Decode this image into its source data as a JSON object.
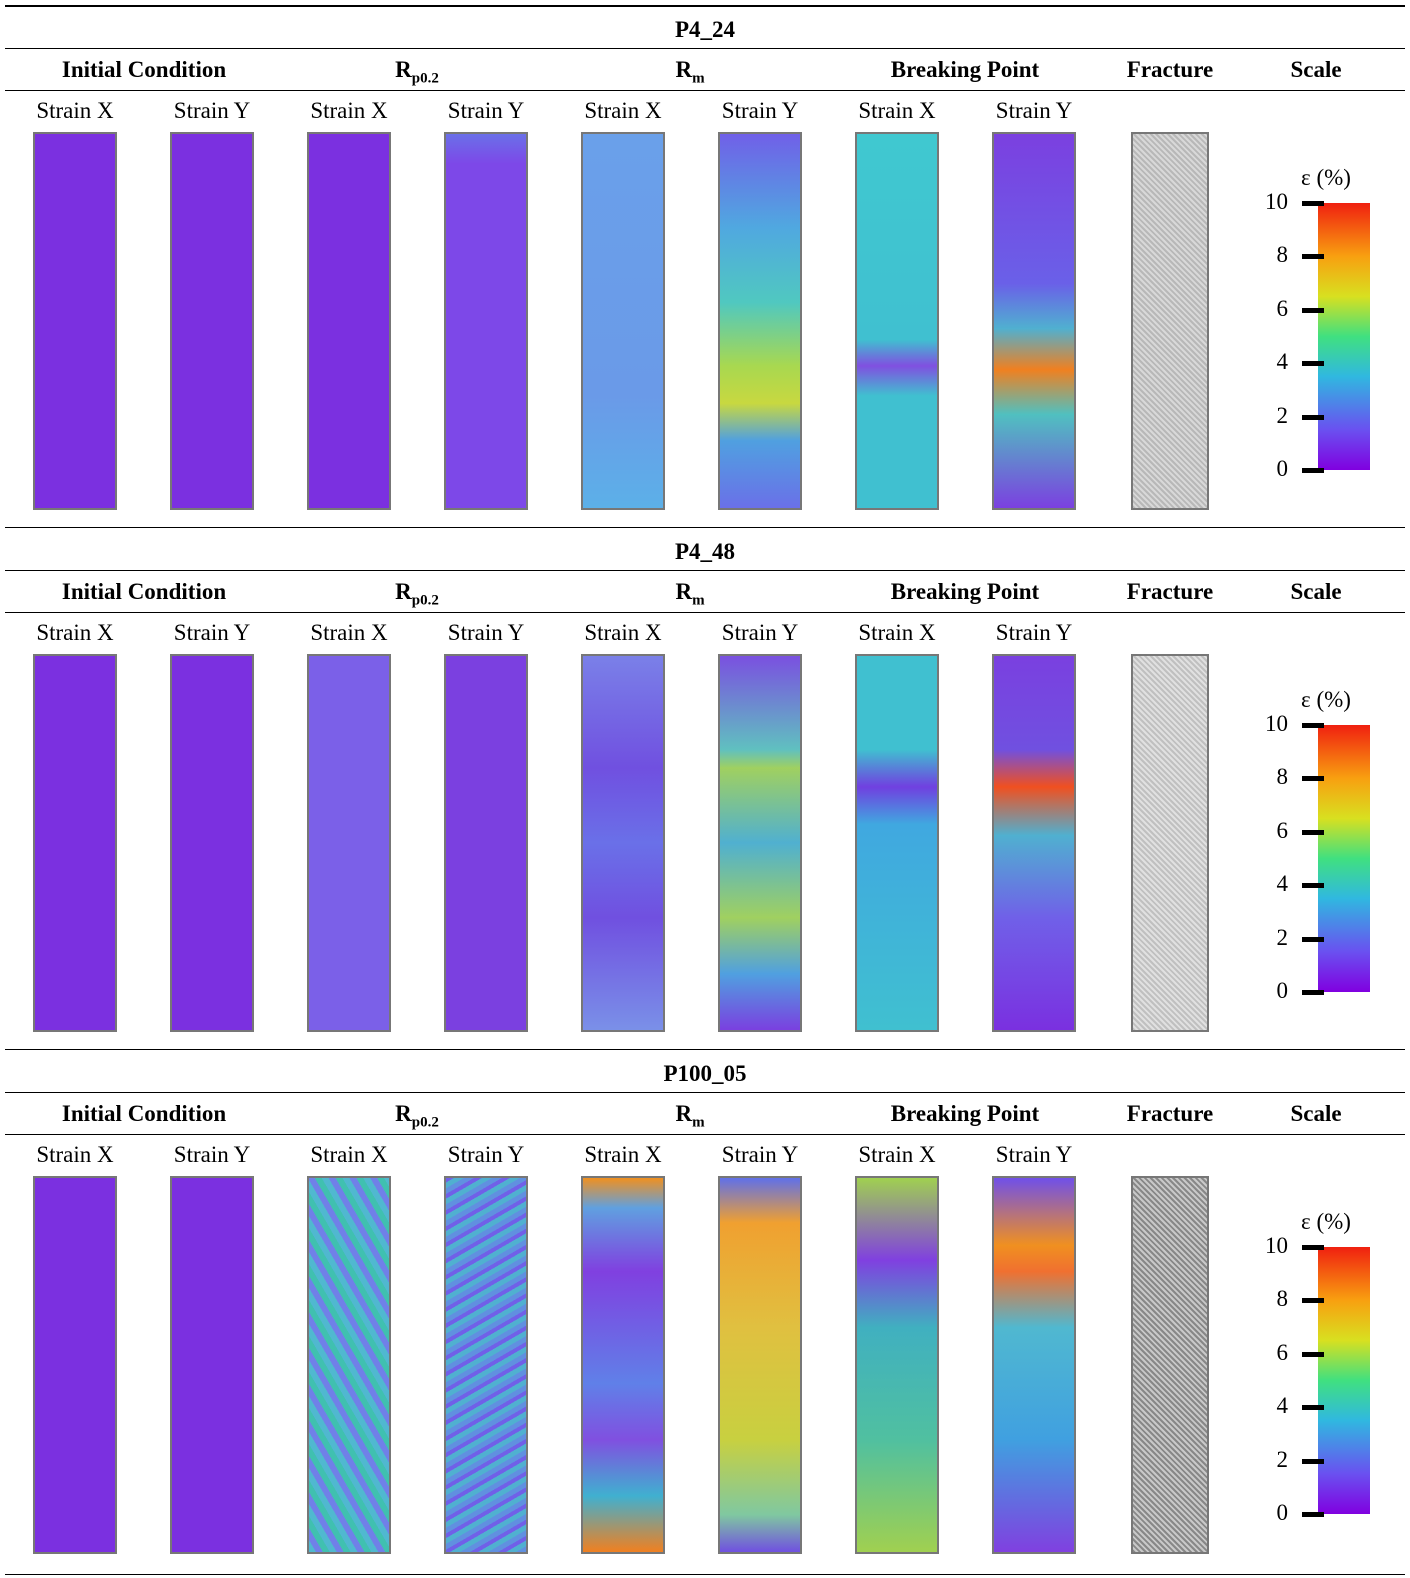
{
  "sections": [
    {
      "title": "P4_24",
      "headers": [
        {
          "text": "Initial Condition"
        },
        {
          "text": "R",
          "sub": "p0.2"
        },
        {
          "text": "R",
          "sub": "m"
        },
        {
          "text": "Breaking Point"
        },
        {
          "text": "Fracture"
        },
        {
          "text": "Scale"
        }
      ],
      "strain_labels": [
        "Strain X",
        "Strain Y",
        "Strain X",
        "Strain Y",
        "Strain X",
        "Strain Y",
        "Strain X",
        "Strain Y"
      ],
      "scale": {
        "label": "ε (%)",
        "ticks": [
          10,
          8,
          6,
          4,
          2,
          0
        ]
      }
    },
    {
      "title": "P4_48",
      "headers": [
        {
          "text": "Initial Condition"
        },
        {
          "text": "R",
          "sub": "p0.2"
        },
        {
          "text": "R",
          "sub": "m"
        },
        {
          "text": "Breaking Point"
        },
        {
          "text": "Fracture"
        },
        {
          "text": "Scale"
        }
      ],
      "strain_labels": [
        "Strain X",
        "Strain Y",
        "Strain X",
        "Strain Y",
        "Strain X",
        "Strain Y",
        "Strain X",
        "Strain Y"
      ],
      "scale": {
        "label": "ε (%)",
        "ticks": [
          10,
          8,
          6,
          4,
          2,
          0
        ]
      }
    },
    {
      "title": "P100_05",
      "headers": [
        {
          "text": "Initial Condition"
        },
        {
          "text": "R",
          "sub": "p0.2"
        },
        {
          "text": "R",
          "sub": "m"
        },
        {
          "text": "Breaking Point"
        },
        {
          "text": "Fracture"
        },
        {
          "text": "Scale"
        }
      ],
      "strain_labels": [
        "Strain X",
        "Strain Y",
        "Strain X",
        "Strain Y",
        "Strain X",
        "Strain Y",
        "Strain X",
        "Strain Y"
      ],
      "scale": {
        "label": "ε (%)",
        "ticks": [
          10,
          8,
          6,
          4,
          2,
          0
        ]
      }
    }
  ]
}
